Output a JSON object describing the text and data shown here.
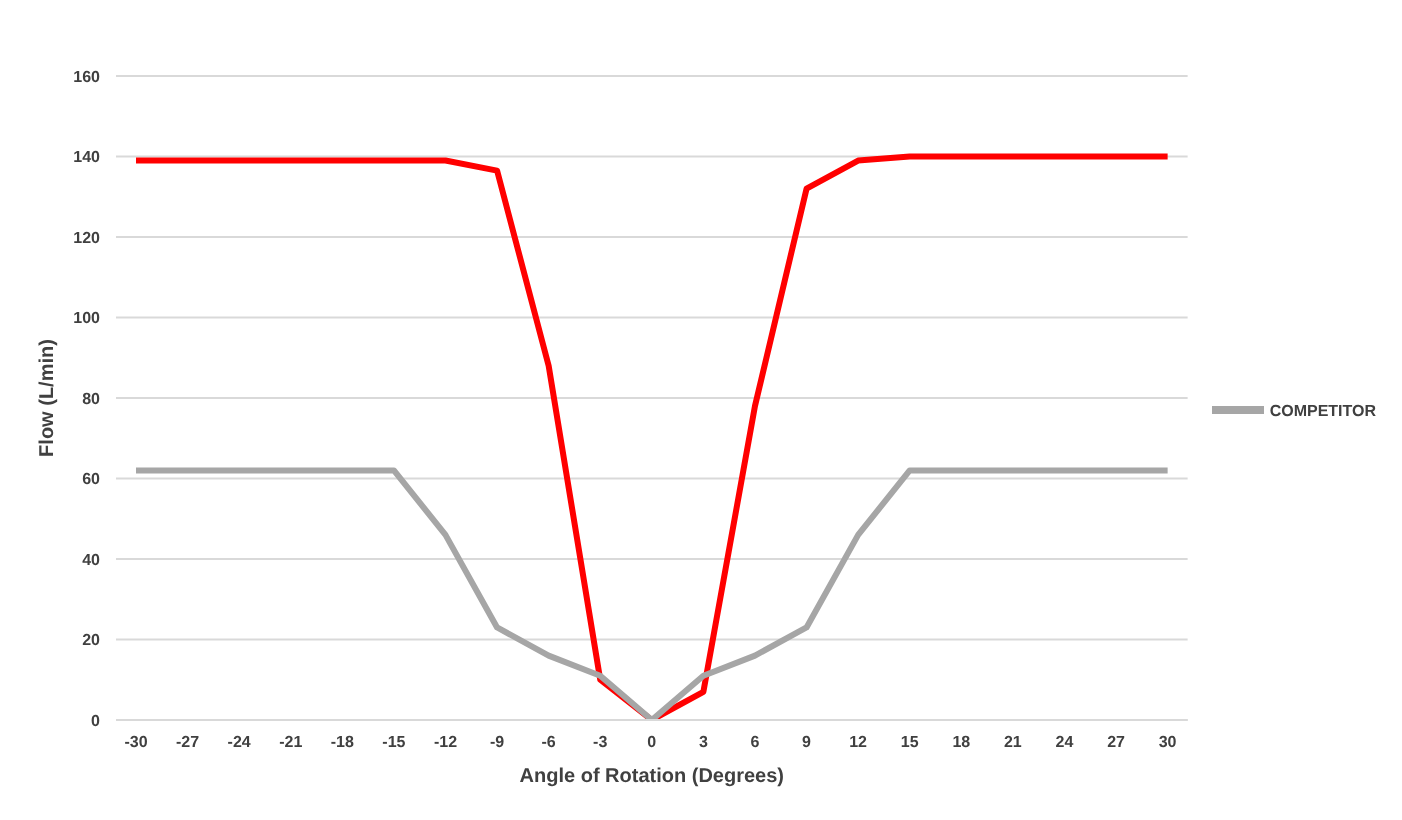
{
  "chart_data": {
    "type": "line",
    "xlabel": "Angle of Rotation (Degrees)",
    "ylabel": "Flow (L/min)",
    "categories": [
      "-30",
      "-27",
      "-24",
      "-21",
      "-18",
      "-15",
      "-12",
      "-9",
      "-6",
      "-3",
      "0",
      "3",
      "6",
      "9",
      "12",
      "15",
      "18",
      "21",
      "24",
      "27",
      "30"
    ],
    "series": [
      {
        "color": "#ff0000",
        "values": [
          139,
          139,
          139,
          139,
          139,
          139,
          139,
          136.5,
          88,
          10,
          0,
          7,
          78,
          132,
          139,
          140,
          140,
          140,
          140,
          140,
          140
        ]
      },
      {
        "name": "COMPETITOR",
        "color": "#a6a6a6",
        "values": [
          62,
          62,
          62,
          62,
          62,
          62,
          46,
          23,
          16,
          11,
          0,
          11,
          16,
          23,
          46,
          62,
          62,
          62,
          62,
          62,
          62
        ]
      }
    ],
    "ylim": [
      0,
      160
    ],
    "yticks": [
      0,
      20,
      40,
      60,
      80,
      100,
      120,
      140,
      160
    ],
    "grid": "y",
    "legend": "right",
    "marker": "none",
    "line_style": "solid"
  }
}
